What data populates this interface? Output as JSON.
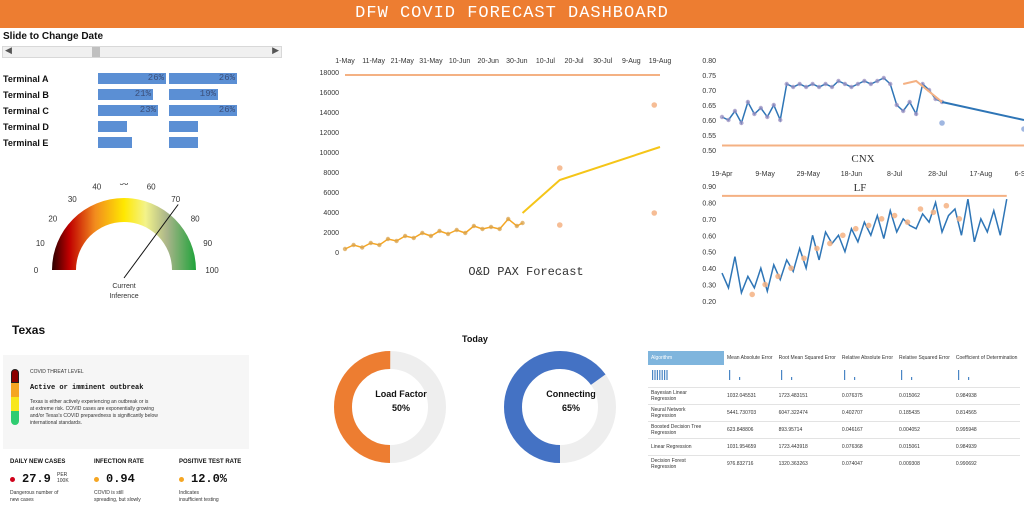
{
  "header": {
    "title": "DFW COVID FORECAST DASHBOARD"
  },
  "slider": {
    "label": "Slide to Change Date",
    "left_arrow": "◀",
    "right_arrow": "▶",
    "position_fraction": 0.3
  },
  "terminals": [
    {
      "label": "Terminal A",
      "bar1_text": "26%",
      "bar1_value": 0.26,
      "bar2_text": "26%",
      "bar2_value": 0.26
    },
    {
      "label": "Terminal B",
      "bar1_text": "21%",
      "bar1_value": 0.21,
      "bar2_text": "19%",
      "bar2_value": 0.19
    },
    {
      "label": "Terminal C",
      "bar1_text": "23%",
      "bar1_value": 0.23,
      "bar2_text": "26%",
      "bar2_value": 0.26
    },
    {
      "label": "Terminal D",
      "bar1_text": "",
      "bar1_value": 0.11,
      "bar2_text": "",
      "bar2_value": 0.11
    },
    {
      "label": "Terminal E",
      "bar1_text": "",
      "bar1_value": 0.13,
      "bar2_text": "",
      "bar2_value": 0.11
    }
  ],
  "gauge": {
    "ticks": [
      "0",
      "10",
      "20",
      "30",
      "40",
      "50",
      "60",
      "70",
      "80",
      "90",
      "100"
    ],
    "value": 72,
    "label_line1": "Current",
    "label_line2": "Inference"
  },
  "texas": {
    "title": "Texas",
    "threat_level_label": "COVID THREAT LEVEL",
    "threat_heading": "Active or imminent outbreak",
    "threat_description_1": "Texas is either actively experiencing an outbreak or is",
    "threat_description_2": "at extreme risk. COVID cases are exponentially growing",
    "threat_description_3": "and/or Texas's COVID preparedness is significantly below",
    "threat_description_4": "international standards.",
    "stats": [
      {
        "header": "DAILY NEW CASES",
        "value": "27.9",
        "unit_top": "PER",
        "unit_bottom": "100K",
        "desc1": "Dangerous number of",
        "desc2": "new cases",
        "color": "#D0021B"
      },
      {
        "header": "INFECTION RATE",
        "value": "0.94",
        "unit_top": "",
        "unit_bottom": "",
        "desc1": "COVID is still",
        "desc2": "spreading, but slowly",
        "color": "#F5A623"
      },
      {
        "header": "POSITIVE TEST RATE",
        "value": "12.0%",
        "unit_top": "",
        "unit_bottom": "",
        "desc1": "Indicates",
        "desc2": "insufficient testing",
        "color": "#F5A623"
      }
    ]
  },
  "today": {
    "title": "Today",
    "load_factor": {
      "label": "Load Factor",
      "value_text": "50%",
      "value": 0.5,
      "color": "#ED7D31"
    },
    "connecting": {
      "label": "Connecting",
      "value_text": "65%",
      "value": 0.65,
      "color": "#4472C4"
    }
  },
  "model_table": {
    "headers": [
      "Algorithm",
      "Mean Absolute Error",
      "Root Mean Squared Error",
      "Relative Absolute Error",
      "Relative Squared Error",
      "Coefficient of Determination"
    ],
    "rows": [
      {
        "name1": "Bayesian Linear",
        "name2": "Regression",
        "values": [
          "1032.045531",
          "1723.483151",
          "0.076375",
          "0.015062",
          "0.984938"
        ]
      },
      {
        "name1": "Neural Network",
        "name2": "Regression",
        "values": [
          "5441.730703",
          "6047.322474",
          "0.402707",
          "0.185435",
          "0.814565"
        ]
      },
      {
        "name1": "Boosted Decision Tree",
        "name2": "Regression",
        "values": [
          "623.848806",
          "893.95714",
          "0.046167",
          "0.004052",
          "0.995948"
        ]
      },
      {
        "name1": "Linear Regression",
        "name2": "",
        "values": [
          "1031.954659",
          "1723.443918",
          "0.076368",
          "0.015061",
          "0.984939"
        ]
      },
      {
        "name1": "Decision Forest",
        "name2": "Regression",
        "values": [
          "976.832716",
          "1320.363263",
          "0.074047",
          "0.009308",
          "0.990692"
        ]
      }
    ]
  },
  "chart_data": [
    {
      "type": "line",
      "title": "O&D PAX Forecast",
      "x_tick_labels": [
        "1-May",
        "11-May",
        "21-May",
        "31-May",
        "10-Jun",
        "20-Jun",
        "30-Jun",
        "10-Jul",
        "20-Jul",
        "30-Jul",
        "9-Aug",
        "19-Aug"
      ],
      "y_tick_labels": [
        "0",
        "2000",
        "4000",
        "6000",
        "8000",
        "10000",
        "12000",
        "14000",
        "16000",
        "18000"
      ],
      "ylim": [
        0,
        18000
      ],
      "x_range_days": [
        0,
        110
      ],
      "grid": false,
      "series": [
        {
          "role": "observed",
          "color": "#F5A623",
          "x": [
            0,
            3,
            6,
            9,
            12,
            15,
            18,
            21,
            24,
            27,
            30,
            33,
            36,
            39,
            42,
            45,
            48,
            51,
            54,
            57,
            60,
            62
          ],
          "y": [
            300,
            700,
            450,
            900,
            700,
            1300,
            1100,
            1600,
            1400,
            1900,
            1600,
            2100,
            1800,
            2200,
            1900,
            2600,
            2300,
            2500,
            2300,
            3300,
            2600,
            2900
          ]
        },
        {
          "role": "forecast",
          "color": "#F5C518",
          "x": [
            62,
            75,
            110
          ],
          "y": [
            3900,
            7200,
            10500
          ]
        },
        {
          "role": "upper_bound_line",
          "color": "#F4B183",
          "x": [
            0,
            110
          ],
          "y": [
            17700,
            17700
          ]
        },
        {
          "role": "outlier_points",
          "color": "#F4B183",
          "x": [
            75,
            75,
            108,
            108
          ],
          "y": [
            8400,
            2700,
            14700,
            3900
          ]
        }
      ]
    },
    {
      "type": "line",
      "title": "CNX",
      "x_tick_labels": [
        "19-Apr",
        "9-May",
        "29-May",
        "18-Jun",
        "8-Jul",
        "28-Jul",
        "17-Aug",
        "6-Sep"
      ],
      "y_tick_labels": [
        "0.50",
        "0.55",
        "0.60",
        "0.65",
        "0.70",
        "0.75",
        "0.80"
      ],
      "ylim": [
        0.5,
        0.8
      ],
      "x_range_days": [
        0,
        140
      ],
      "grid": false,
      "series": [
        {
          "role": "observed",
          "color": "#2E75B6",
          "x": [
            0,
            3,
            6,
            9,
            12,
            15,
            18,
            21,
            24,
            27,
            30,
            33,
            36,
            39,
            42,
            45,
            48,
            51,
            54,
            57,
            60,
            63,
            66,
            69,
            72,
            75,
            78,
            81,
            84,
            87,
            90,
            93,
            96,
            99,
            102
          ],
          "y": [
            0.61,
            0.6,
            0.63,
            0.59,
            0.66,
            0.62,
            0.64,
            0.61,
            0.65,
            0.6,
            0.72,
            0.71,
            0.72,
            0.71,
            0.72,
            0.71,
            0.72,
            0.71,
            0.73,
            0.72,
            0.71,
            0.72,
            0.73,
            0.72,
            0.73,
            0.74,
            0.72,
            0.65,
            0.63,
            0.66,
            0.62,
            0.72,
            0.7,
            0.67,
            0.66
          ]
        },
        {
          "role": "model",
          "color": "#2E75B6",
          "x": [
            102,
            140
          ],
          "y": [
            0.66,
            0.6
          ]
        },
        {
          "role": "fitted",
          "color": "#F4B183",
          "x": [
            84,
            90,
            102
          ],
          "y": [
            0.72,
            0.73,
            0.66
          ]
        },
        {
          "role": "lower_bound_line",
          "color": "#F4B183",
          "x": [
            0,
            140
          ],
          "y": [
            0.515,
            0.515
          ]
        },
        {
          "role": "outlier_points",
          "color": "#8FAADC",
          "x": [
            102,
            140
          ],
          "y": [
            0.59,
            0.57
          ]
        }
      ]
    },
    {
      "type": "line",
      "title": "LF",
      "y_tick_labels": [
        "0.20",
        "0.30",
        "0.40",
        "0.50",
        "0.60",
        "0.70",
        "0.80",
        "0.90"
      ],
      "ylim": [
        0.2,
        0.9
      ],
      "x_range_days": [
        0,
        140
      ],
      "grid": false,
      "series": [
        {
          "role": "observed",
          "color": "#2E75B6",
          "x": [
            0,
            3,
            6,
            9,
            12,
            15,
            18,
            21,
            24,
            27,
            30,
            33,
            36,
            39,
            42,
            45,
            48,
            51,
            54,
            57,
            60,
            63,
            66,
            69,
            72,
            75,
            78,
            81,
            84,
            87,
            90,
            93,
            96,
            99,
            102,
            105,
            108,
            111,
            114,
            117,
            120,
            123,
            126,
            129,
            132
          ],
          "y": [
            0.37,
            0.28,
            0.47,
            0.25,
            0.35,
            0.28,
            0.4,
            0.26,
            0.42,
            0.33,
            0.45,
            0.38,
            0.52,
            0.4,
            0.6,
            0.45,
            0.62,
            0.55,
            0.6,
            0.5,
            0.64,
            0.56,
            0.68,
            0.6,
            0.72,
            0.58,
            0.75,
            0.62,
            0.7,
            0.66,
            0.64,
            0.73,
            0.68,
            0.8,
            0.62,
            0.72,
            0.76,
            0.6,
            0.82,
            0.56,
            0.7,
            0.62,
            0.75,
            0.6,
            0.82
          ]
        },
        {
          "role": "scatter_points",
          "color": "#F4B183",
          "x": [
            14,
            20,
            26,
            32,
            38,
            44,
            50,
            56,
            62,
            68,
            74,
            80,
            86,
            92,
            98,
            104,
            110
          ],
          "y": [
            0.24,
            0.3,
            0.35,
            0.4,
            0.46,
            0.52,
            0.55,
            0.6,
            0.64,
            0.66,
            0.7,
            0.72,
            0.68,
            0.76,
            0.74,
            0.78,
            0.7
          ]
        },
        {
          "role": "upper_bound_line",
          "color": "#F4B183",
          "x": [
            0,
            132
          ],
          "y": [
            0.84,
            0.84
          ]
        }
      ]
    }
  ]
}
